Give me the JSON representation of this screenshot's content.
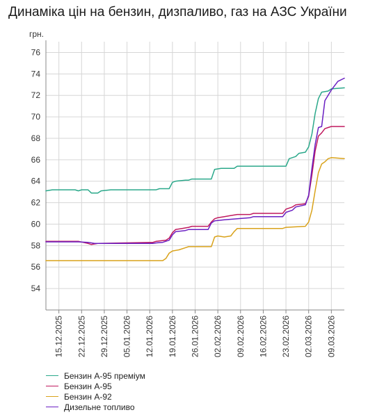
{
  "title": "Динаміка цін на бензин, дизпаливо, газ на АЗС України",
  "chart_data": {
    "type": "line",
    "title": "Динаміка цін на бензин, дизпаливо, газ на АЗС України",
    "ylabel": "грн.",
    "xlabel": "",
    "ylim": [
      52,
      77
    ],
    "yticks": [
      54,
      56,
      58,
      60,
      62,
      64,
      66,
      68,
      70,
      72,
      74,
      76
    ],
    "x_start": "2025-12-11",
    "x_end": "2026-03-13",
    "xticks": [
      "15.12.2025",
      "22.12.2025",
      "29.12.2025",
      "05.01.2026",
      "12.01.2026",
      "19.01.2026",
      "26.01.2026",
      "02.02.2026",
      "09.02.2026",
      "16.02.2026",
      "23.02.2026",
      "02.03.2026",
      "09.03.2026"
    ],
    "xtick_dates": [
      "2025-12-15",
      "2025-12-22",
      "2025-12-29",
      "2026-01-05",
      "2026-01-12",
      "2026-01-19",
      "2026-01-26",
      "2026-02-02",
      "2026-02-09",
      "2026-02-16",
      "2026-02-23",
      "2026-03-02",
      "2026-03-09"
    ],
    "grid": true,
    "legend_position": "bottom-left",
    "series": [
      {
        "name": "Бензин А-95 преміум",
        "color": "#2aa88a",
        "points": [
          [
            "2025-12-11",
            63.1
          ],
          [
            "2025-12-13",
            63.2
          ],
          [
            "2025-12-20",
            63.2
          ],
          [
            "2025-12-21",
            63.1
          ],
          [
            "2025-12-22",
            63.2
          ],
          [
            "2025-12-24",
            63.2
          ],
          [
            "2025-12-25",
            62.9
          ],
          [
            "2025-12-27",
            62.9
          ],
          [
            "2025-12-28",
            63.1
          ],
          [
            "2025-12-31",
            63.2
          ],
          [
            "2026-01-14",
            63.2
          ],
          [
            "2026-01-15",
            63.3
          ],
          [
            "2026-01-18",
            63.3
          ],
          [
            "2026-01-19",
            63.9
          ],
          [
            "2026-01-20",
            64.0
          ],
          [
            "2026-01-23",
            64.1
          ],
          [
            "2026-01-24",
            64.1
          ],
          [
            "2026-01-25",
            64.2
          ],
          [
            "2026-01-31",
            64.2
          ],
          [
            "2026-02-01",
            65.1
          ],
          [
            "2026-02-03",
            65.2
          ],
          [
            "2026-02-07",
            65.2
          ],
          [
            "2026-02-08",
            65.4
          ],
          [
            "2026-02-23",
            65.4
          ],
          [
            "2026-02-24",
            66.1
          ],
          [
            "2026-02-26",
            66.3
          ],
          [
            "2026-02-27",
            66.6
          ],
          [
            "2026-03-01",
            66.7
          ],
          [
            "2026-03-02",
            67.2
          ],
          [
            "2026-03-03",
            68.4
          ],
          [
            "2026-03-04",
            70.3
          ],
          [
            "2026-03-05",
            71.7
          ],
          [
            "2026-03-06",
            72.3
          ],
          [
            "2026-03-08",
            72.4
          ],
          [
            "2026-03-09",
            72.6
          ],
          [
            "2026-03-13",
            72.7
          ]
        ]
      },
      {
        "name": "Бензин А-95",
        "color": "#c0195e",
        "points": [
          [
            "2025-12-11",
            58.4
          ],
          [
            "2025-12-21",
            58.4
          ],
          [
            "2025-12-24",
            58.2
          ],
          [
            "2025-12-25",
            58.1
          ],
          [
            "2025-12-27",
            58.2
          ],
          [
            "2026-01-13",
            58.3
          ],
          [
            "2026-01-14",
            58.4
          ],
          [
            "2026-01-17",
            58.5
          ],
          [
            "2026-01-18",
            58.7
          ],
          [
            "2026-01-19",
            59.2
          ],
          [
            "2026-01-20",
            59.5
          ],
          [
            "2026-01-22",
            59.6
          ],
          [
            "2026-01-24",
            59.7
          ],
          [
            "2026-01-25",
            59.8
          ],
          [
            "2026-01-30",
            59.8
          ],
          [
            "2026-01-31",
            60.2
          ],
          [
            "2026-02-01",
            60.5
          ],
          [
            "2026-02-02",
            60.6
          ],
          [
            "2026-02-04",
            60.7
          ],
          [
            "2026-02-06",
            60.8
          ],
          [
            "2026-02-08",
            60.9
          ],
          [
            "2026-02-12",
            60.9
          ],
          [
            "2026-02-13",
            61.0
          ],
          [
            "2026-02-22",
            61.0
          ],
          [
            "2026-02-23",
            61.4
          ],
          [
            "2026-02-25",
            61.6
          ],
          [
            "2026-02-26",
            61.8
          ],
          [
            "2026-03-01",
            61.9
          ],
          [
            "2026-03-02",
            62.6
          ],
          [
            "2026-03-03",
            64.6
          ],
          [
            "2026-03-04",
            66.8
          ],
          [
            "2026-03-05",
            68.2
          ],
          [
            "2026-03-06",
            68.5
          ],
          [
            "2026-03-07",
            68.9
          ],
          [
            "2026-03-08",
            69.0
          ],
          [
            "2026-03-09",
            69.1
          ],
          [
            "2026-03-13",
            69.1
          ]
        ]
      },
      {
        "name": "Бензин А-92",
        "color": "#d9a21a",
        "points": [
          [
            "2025-12-11",
            56.6
          ],
          [
            "2026-01-16",
            56.6
          ],
          [
            "2026-01-17",
            56.8
          ],
          [
            "2026-01-18",
            57.3
          ],
          [
            "2026-01-19",
            57.5
          ],
          [
            "2026-01-21",
            57.6
          ],
          [
            "2026-01-23",
            57.8
          ],
          [
            "2026-01-24",
            57.9
          ],
          [
            "2026-01-31",
            57.9
          ],
          [
            "2026-02-01",
            58.8
          ],
          [
            "2026-02-02",
            58.9
          ],
          [
            "2026-02-04",
            58.8
          ],
          [
            "2026-02-06",
            58.9
          ],
          [
            "2026-02-07",
            59.3
          ],
          [
            "2026-02-08",
            59.6
          ],
          [
            "2026-02-11",
            59.6
          ],
          [
            "2026-02-12",
            59.6
          ],
          [
            "2026-02-16",
            59.6
          ],
          [
            "2026-02-17",
            59.6
          ],
          [
            "2026-02-22",
            59.6
          ],
          [
            "2026-02-23",
            59.7
          ],
          [
            "2026-03-01",
            59.8
          ],
          [
            "2026-03-02",
            60.2
          ],
          [
            "2026-03-03",
            61.3
          ],
          [
            "2026-03-04",
            63.1
          ],
          [
            "2026-03-05",
            64.8
          ],
          [
            "2026-03-06",
            65.6
          ],
          [
            "2026-03-07",
            65.8
          ],
          [
            "2026-03-08",
            66.1
          ],
          [
            "2026-03-09",
            66.2
          ],
          [
            "2026-03-13",
            66.1
          ]
        ]
      },
      {
        "name": "Дизельне топливо",
        "color": "#6a1fc2",
        "points": [
          [
            "2025-12-11",
            58.35
          ],
          [
            "2025-12-21",
            58.35
          ],
          [
            "2025-12-24",
            58.3
          ],
          [
            "2025-12-26",
            58.2
          ],
          [
            "2026-01-13",
            58.2
          ],
          [
            "2026-01-14",
            58.25
          ],
          [
            "2026-01-16",
            58.3
          ],
          [
            "2026-01-18",
            58.5
          ],
          [
            "2026-01-19",
            59.0
          ],
          [
            "2026-01-20",
            59.3
          ],
          [
            "2026-01-23",
            59.4
          ],
          [
            "2026-01-24",
            59.5
          ],
          [
            "2026-01-30",
            59.5
          ],
          [
            "2026-01-31",
            60.1
          ],
          [
            "2026-02-01",
            60.3
          ],
          [
            "2026-02-04",
            60.4
          ],
          [
            "2026-02-08",
            60.5
          ],
          [
            "2026-02-12",
            60.6
          ],
          [
            "2026-02-13",
            60.7
          ],
          [
            "2026-02-22",
            60.7
          ],
          [
            "2026-02-23",
            61.1
          ],
          [
            "2026-02-25",
            61.3
          ],
          [
            "2026-02-26",
            61.6
          ],
          [
            "2026-03-01",
            61.8
          ],
          [
            "2026-03-02",
            62.7
          ],
          [
            "2026-03-03",
            65.2
          ],
          [
            "2026-03-04",
            67.4
          ],
          [
            "2026-03-05",
            69.0
          ],
          [
            "2026-03-06",
            69.1
          ],
          [
            "2026-03-07",
            71.5
          ],
          [
            "2026-03-09",
            72.5
          ],
          [
            "2026-03-11",
            73.3
          ],
          [
            "2026-03-13",
            73.6
          ]
        ]
      }
    ]
  }
}
